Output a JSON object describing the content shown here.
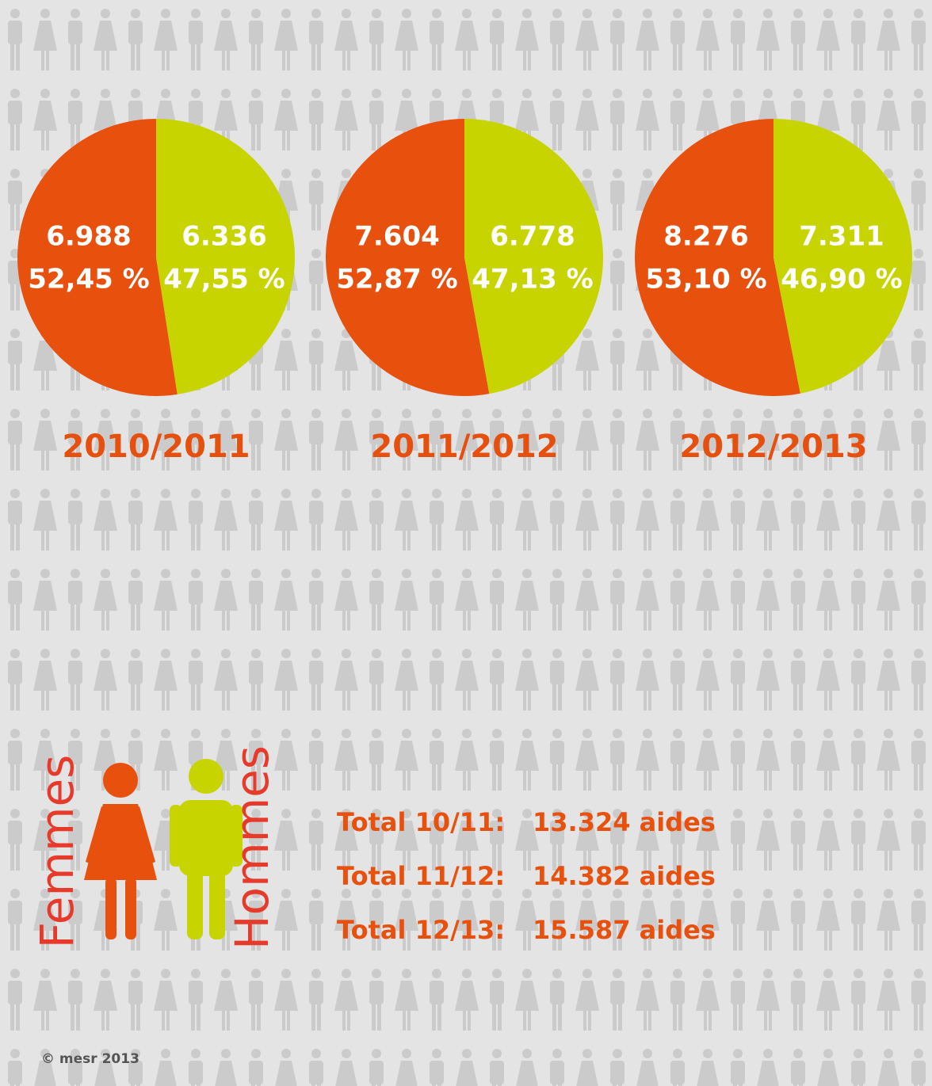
{
  "chart_data": [
    {
      "type": "pie",
      "title": "2010/2011",
      "values": [
        52.45,
        47.55
      ],
      "value_labels": [
        "52,45 %",
        "47,55 %"
      ],
      "counts": [
        6988,
        6336
      ],
      "count_labels": [
        "6.988",
        "6.336"
      ],
      "colors": [
        "#e8500e",
        "#c8d400"
      ]
    },
    {
      "type": "pie",
      "title": "2011/2012",
      "values": [
        52.87,
        47.13
      ],
      "value_labels": [
        "52,87 %",
        "47,13 %"
      ],
      "counts": [
        7604,
        6778
      ],
      "count_labels": [
        "7.604",
        "6.778"
      ],
      "colors": [
        "#e8500e",
        "#c8d400"
      ]
    },
    {
      "type": "pie",
      "title": "2012/2013",
      "values": [
        53.1,
        46.9
      ],
      "value_labels": [
        "53,10 %",
        "46,90 %"
      ],
      "counts": [
        8276,
        7311
      ],
      "count_labels": [
        "8.276",
        "7.311"
      ],
      "colors": [
        "#e8500e",
        "#c8d400"
      ]
    }
  ],
  "legend": {
    "labels": [
      "Femmes",
      "Hommes"
    ]
  },
  "totals": [
    {
      "label": "Total 10/11:",
      "value": "13.324 aides"
    },
    {
      "label": "Total 11/12:",
      "value": "14.382 aides"
    },
    {
      "label": "Total 12/13:",
      "value": "15.587 aides"
    }
  ],
  "footer": "© mesr 2013"
}
